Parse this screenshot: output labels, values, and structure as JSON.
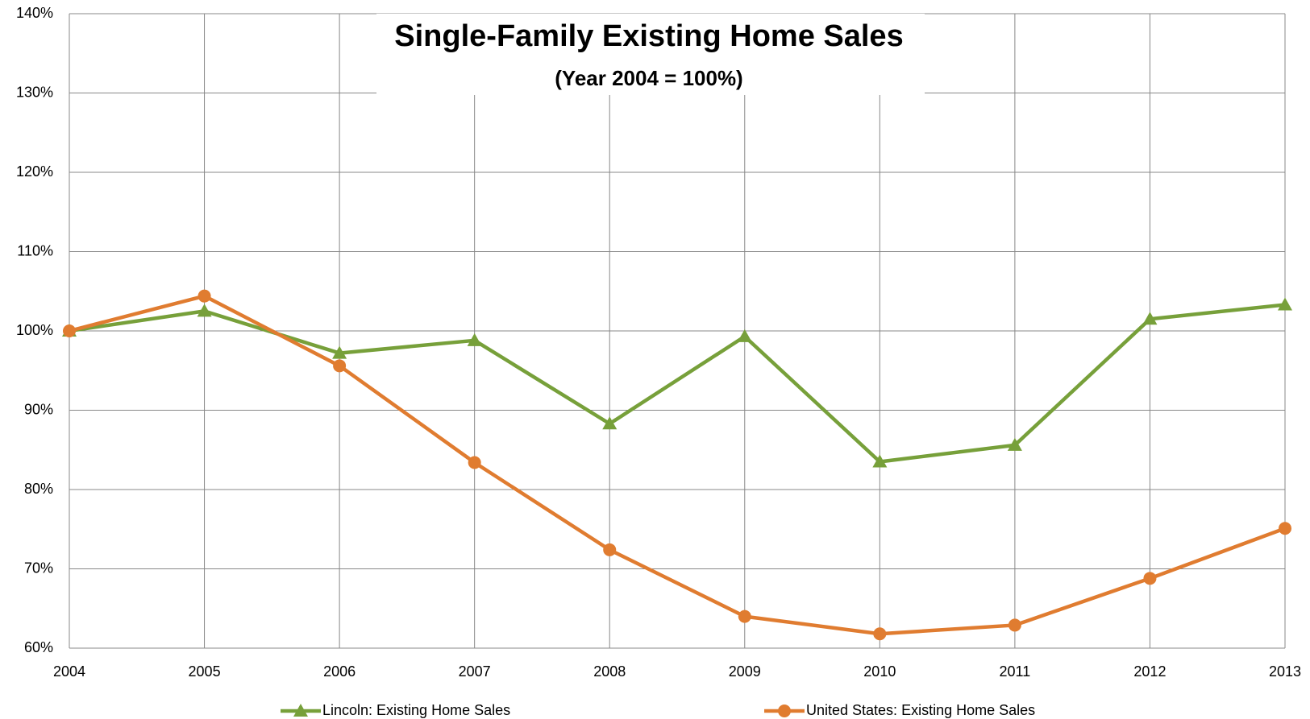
{
  "chart_data": {
    "type": "line",
    "title": "Single-Family Existing Home Sales",
    "subtitle": "(Year 2004 = 100%)",
    "categories": [
      "2004",
      "2005",
      "2006",
      "2007",
      "2008",
      "2009",
      "2010",
      "2011",
      "2012",
      "2013"
    ],
    "series": [
      {
        "name": "Lincoln: Existing Home Sales",
        "color": "#77a03a",
        "marker": "triangle",
        "values": [
          100,
          102.5,
          97.2,
          98.8,
          88.3,
          99.3,
          83.5,
          85.6,
          101.5,
          103.3
        ]
      },
      {
        "name": "United States: Existing Home Sales",
        "color": "#e07c30",
        "marker": "circle",
        "values": [
          100,
          104.4,
          95.6,
          83.4,
          72.4,
          64.0,
          61.8,
          62.9,
          68.8,
          75.1
        ]
      }
    ],
    "ylim": [
      60,
      140
    ],
    "yticks": [
      {
        "value": 60,
        "label": "60%"
      },
      {
        "value": 70,
        "label": "70%"
      },
      {
        "value": 80,
        "label": "80%"
      },
      {
        "value": 90,
        "label": "90%"
      },
      {
        "value": 100,
        "label": "100%"
      },
      {
        "value": 110,
        "label": "110%"
      },
      {
        "value": 120,
        "label": "120%"
      },
      {
        "value": 130,
        "label": "130%"
      },
      {
        "value": 140,
        "label": "140%"
      }
    ],
    "grid": true,
    "legend": "bottom"
  }
}
